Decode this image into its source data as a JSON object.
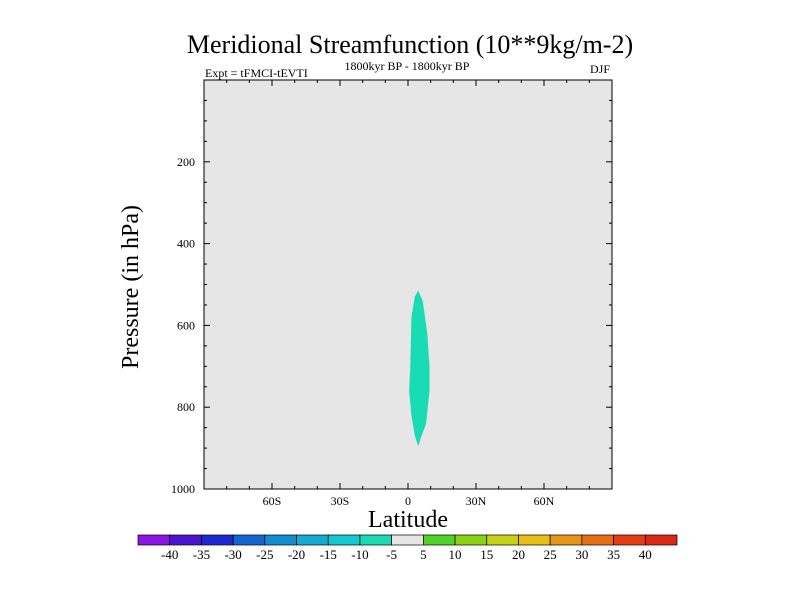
{
  "chart_data": {
    "type": "contour",
    "title": "Meridional Streamfunction (10**9kg/m-2)",
    "left_string": "Expt = tFMCI-tEVTI",
    "center_string": "1800kyr BP - 1800kyr BP",
    "right_string": "DJF",
    "xlabel": "Latitude",
    "ylabel": "Pressure (in hPa)",
    "xlim": [
      -90,
      90
    ],
    "ylim": [
      1000,
      0
    ],
    "x_ticks": [
      {
        "value": -60,
        "label": "60S"
      },
      {
        "value": -30,
        "label": "30S"
      },
      {
        "value": 0,
        "label": "0"
      },
      {
        "value": 30,
        "label": "30N"
      },
      {
        "value": 60,
        "label": "60N"
      }
    ],
    "y_ticks": [
      {
        "value": 200,
        "label": "200"
      },
      {
        "value": 400,
        "label": "400"
      },
      {
        "value": 600,
        "label": "600"
      },
      {
        "value": 800,
        "label": "800"
      },
      {
        "value": 1000,
        "label": "1000"
      }
    ],
    "background_color": "#e6e6e6",
    "contour_region": {
      "level_range": [
        -10,
        -5
      ],
      "color": "#19dcb4",
      "outline": [
        {
          "lat": 4.5,
          "p": 515
        },
        {
          "lat": 6.5,
          "p": 540
        },
        {
          "lat": 8.5,
          "p": 620
        },
        {
          "lat": 9.5,
          "p": 700
        },
        {
          "lat": 9.5,
          "p": 760
        },
        {
          "lat": 8.0,
          "p": 840
        },
        {
          "lat": 6.0,
          "p": 870
        },
        {
          "lat": 4.5,
          "p": 895
        },
        {
          "lat": 3.0,
          "p": 870
        },
        {
          "lat": 1.5,
          "p": 820
        },
        {
          "lat": 0.5,
          "p": 760
        },
        {
          "lat": 1.0,
          "p": 700
        },
        {
          "lat": 1.5,
          "p": 580
        },
        {
          "lat": 3.0,
          "p": 530
        }
      ]
    },
    "colorbar": {
      "labels": [
        "-40",
        "-35",
        "-30",
        "-25",
        "-20",
        "-15",
        "-10",
        "-5",
        "5",
        "10",
        "15",
        "20",
        "25",
        "30",
        "35",
        "40"
      ],
      "colors": [
        "#8b14e6",
        "#4b14d2",
        "#1e28d2",
        "#1464d2",
        "#148cd2",
        "#14aad2",
        "#14c8d2",
        "#19dcb4",
        "#e6e6e6",
        "#50d228",
        "#8cd214",
        "#c8d214",
        "#e6be14",
        "#e69614",
        "#e66e14",
        "#e63c14",
        "#dc2814"
      ]
    }
  }
}
